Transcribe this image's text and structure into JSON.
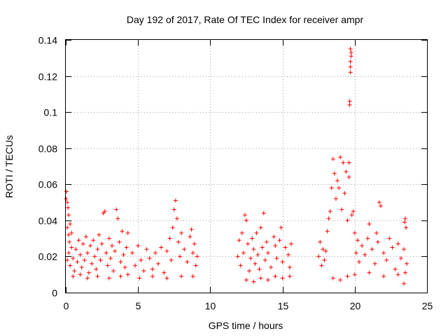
{
  "chart_data": {
    "type": "scatter",
    "title": "Day 192 of 2017, Rate Of TEC Index for receiver ampr",
    "xlabel": "GPS time / hours",
    "ylabel": "ROTI / TECUs",
    "xlim": [
      0,
      25
    ],
    "ylim": [
      0,
      0.14
    ],
    "xticks": [
      0,
      5,
      10,
      15,
      20,
      25
    ],
    "xtick_labels": [
      "0",
      "5",
      "10",
      "15",
      "20",
      "25"
    ],
    "yticks": [
      0,
      0.02,
      0.04,
      0.06,
      0.08,
      0.1,
      0.12,
      0.14
    ],
    "ytick_labels": [
      "0",
      "0.02",
      "0.04",
      "0.06",
      "0.08",
      "0.1",
      "0.12",
      "0.14"
    ],
    "grid": true,
    "marker": "+",
    "color": "#ff0000",
    "series": [
      {
        "name": "ROTI",
        "points": [
          [
            0.02,
            0.052
          ],
          [
            0.05,
            0.056
          ],
          [
            0.1,
            0.05
          ],
          [
            0.15,
            0.047
          ],
          [
            0.2,
            0.043
          ],
          [
            0.1,
            0.036
          ],
          [
            0.2,
            0.032
          ],
          [
            0.3,
            0.038
          ],
          [
            0.25,
            0.028
          ],
          [
            0.4,
            0.033
          ],
          [
            0.1,
            0.018
          ],
          [
            0.2,
            0.022
          ],
          [
            0.3,
            0.015
          ],
          [
            0.4,
            0.025
          ],
          [
            0.5,
            0.019
          ],
          [
            0.6,
            0.012
          ],
          [
            0.7,
            0.024
          ],
          [
            0.8,
            0.017
          ],
          [
            0.9,
            0.029
          ],
          [
            1.0,
            0.021
          ],
          [
            1.1,
            0.014
          ],
          [
            1.2,
            0.027
          ],
          [
            1.3,
            0.018
          ],
          [
            1.4,
            0.031
          ],
          [
            1.5,
            0.022
          ],
          [
            1.6,
            0.011
          ],
          [
            1.7,
            0.026
          ],
          [
            1.8,
            0.016
          ],
          [
            1.9,
            0.029
          ],
          [
            2.0,
            0.02
          ],
          [
            2.1,
            0.013
          ],
          [
            2.2,
            0.024
          ],
          [
            2.3,
            0.032
          ],
          [
            2.4,
            0.018
          ],
          [
            2.5,
            0.027
          ],
          [
            2.6,
            0.044
          ],
          [
            2.7,
            0.045
          ],
          [
            2.8,
            0.022
          ],
          [
            2.9,
            0.015
          ],
          [
            3.0,
            0.03
          ],
          [
            3.1,
            0.019
          ],
          [
            3.2,
            0.026
          ],
          [
            3.3,
            0.012
          ],
          [
            3.4,
            0.023
          ],
          [
            3.5,
            0.046
          ],
          [
            3.6,
            0.041
          ],
          [
            3.7,
            0.028
          ],
          [
            3.8,
            0.017
          ],
          [
            3.9,
            0.034
          ],
          [
            4.0,
            0.021
          ],
          [
            4.1,
            0.014
          ],
          [
            4.2,
            0.025
          ],
          [
            4.3,
            0.033
          ],
          [
            0.5,
            0.009
          ],
          [
            1.0,
            0.01
          ],
          [
            1.5,
            0.008
          ],
          [
            2.2,
            0.009
          ],
          [
            3.0,
            0.008
          ],
          [
            3.8,
            0.009
          ],
          [
            4.3,
            0.01
          ],
          [
            4.6,
            0.022
          ],
          [
            4.8,
            0.015
          ],
          [
            5.0,
            0.026
          ],
          [
            5.2,
            0.018
          ],
          [
            5.4,
            0.012
          ],
          [
            5.6,
            0.024
          ],
          [
            5.8,
            0.019
          ],
          [
            6.0,
            0.013
          ],
          [
            6.2,
            0.022
          ],
          [
            6.4,
            0.016
          ],
          [
            6.6,
            0.025
          ],
          [
            6.8,
            0.011
          ],
          [
            7.0,
            0.023
          ],
          [
            7.2,
            0.03
          ],
          [
            7.3,
            0.018
          ],
          [
            7.4,
            0.036
          ],
          [
            7.5,
            0.046
          ],
          [
            7.6,
            0.051
          ],
          [
            7.7,
            0.041
          ],
          [
            7.8,
            0.028
          ],
          [
            7.9,
            0.02
          ],
          [
            8.0,
            0.033
          ],
          [
            8.2,
            0.024
          ],
          [
            8.4,
            0.017
          ],
          [
            8.6,
            0.031
          ],
          [
            8.7,
            0.035
          ],
          [
            8.8,
            0.022
          ],
          [
            8.9,
            0.027
          ],
          [
            9.0,
            0.015
          ],
          [
            9.1,
            0.02
          ],
          [
            5.1,
            0.008
          ],
          [
            6.0,
            0.009
          ],
          [
            7.0,
            0.008
          ],
          [
            8.0,
            0.009
          ],
          [
            8.8,
            0.009
          ],
          [
            11.9,
            0.02
          ],
          [
            12.0,
            0.029
          ],
          [
            12.1,
            0.015
          ],
          [
            12.2,
            0.033
          ],
          [
            12.3,
            0.022
          ],
          [
            12.4,
            0.043
          ],
          [
            12.5,
            0.04
          ],
          [
            12.6,
            0.027
          ],
          [
            12.7,
            0.012
          ],
          [
            12.8,
            0.019
          ],
          [
            12.9,
            0.03
          ],
          [
            13.0,
            0.024
          ],
          [
            13.1,
            0.016
          ],
          [
            13.2,
            0.033
          ],
          [
            13.3,
            0.021
          ],
          [
            13.4,
            0.013
          ],
          [
            13.5,
            0.036
          ],
          [
            13.6,
            0.025
          ],
          [
            13.7,
            0.044
          ],
          [
            13.8,
            0.018
          ],
          [
            13.9,
            0.028
          ],
          [
            14.0,
            0.022
          ],
          [
            14.2,
            0.014
          ],
          [
            14.4,
            0.031
          ],
          [
            14.5,
            0.026
          ],
          [
            14.6,
            0.019
          ],
          [
            14.8,
            0.029
          ],
          [
            14.9,
            0.036
          ],
          [
            15.0,
            0.017
          ],
          [
            15.2,
            0.025
          ],
          [
            15.4,
            0.021
          ],
          [
            15.5,
            0.014
          ],
          [
            15.6,
            0.027
          ],
          [
            12.5,
            0.007
          ],
          [
            13.0,
            0.006
          ],
          [
            13.5,
            0.008
          ],
          [
            14.0,
            0.007
          ],
          [
            14.5,
            0.009
          ],
          [
            15.0,
            0.008
          ],
          [
            15.5,
            0.009
          ],
          [
            17.5,
            0.02
          ],
          [
            17.6,
            0.028
          ],
          [
            17.7,
            0.015
          ],
          [
            17.8,
            0.024
          ],
          [
            17.9,
            0.018
          ],
          [
            18.0,
            0.023
          ],
          [
            18.1,
            0.034
          ],
          [
            18.2,
            0.041
          ],
          [
            18.3,
            0.045
          ],
          [
            18.4,
            0.058
          ],
          [
            18.5,
            0.074
          ],
          [
            18.6,
            0.066
          ],
          [
            18.7,
            0.052
          ],
          [
            18.8,
            0.062
          ],
          [
            18.9,
            0.058
          ],
          [
            19.0,
            0.075
          ],
          [
            19.1,
            0.046
          ],
          [
            19.2,
            0.072
          ],
          [
            19.3,
            0.055
          ],
          [
            19.4,
            0.067
          ],
          [
            19.5,
            0.04
          ],
          [
            19.6,
            0.064
          ],
          [
            19.6,
            0.072
          ],
          [
            19.65,
            0.104
          ],
          [
            19.65,
            0.106
          ],
          [
            19.7,
            0.122
          ],
          [
            19.7,
            0.125
          ],
          [
            19.75,
            0.131
          ],
          [
            19.75,
            0.133
          ],
          [
            19.7,
            0.135
          ],
          [
            19.7,
            0.128
          ],
          [
            19.8,
            0.043
          ],
          [
            19.9,
            0.045
          ],
          [
            20.0,
            0.033
          ],
          [
            20.1,
            0.022
          ],
          [
            20.2,
            0.029
          ],
          [
            20.3,
            0.017
          ],
          [
            20.5,
            0.026
          ],
          [
            20.7,
            0.021
          ],
          [
            20.9,
            0.03
          ],
          [
            21.0,
            0.038
          ],
          [
            21.2,
            0.024
          ],
          [
            21.4,
            0.016
          ],
          [
            21.5,
            0.033
          ],
          [
            21.6,
            0.028
          ],
          [
            21.7,
            0.05
          ],
          [
            21.8,
            0.048
          ],
          [
            22.0,
            0.022
          ],
          [
            22.2,
            0.018
          ],
          [
            22.4,
            0.03
          ],
          [
            22.6,
            0.025
          ],
          [
            22.8,
            0.013
          ],
          [
            23.0,
            0.027
          ],
          [
            23.2,
            0.019
          ],
          [
            23.4,
            0.024
          ],
          [
            23.45,
            0.039
          ],
          [
            23.5,
            0.041
          ],
          [
            23.55,
            0.036
          ],
          [
            23.6,
            0.016
          ],
          [
            23.5,
            0.011
          ],
          [
            18.5,
            0.008
          ],
          [
            19.0,
            0.007
          ],
          [
            19.5,
            0.009
          ],
          [
            20.0,
            0.01
          ],
          [
            21.0,
            0.011
          ],
          [
            22.0,
            0.009
          ],
          [
            23.0,
            0.01
          ],
          [
            23.4,
            0.005
          ]
        ]
      }
    ]
  }
}
